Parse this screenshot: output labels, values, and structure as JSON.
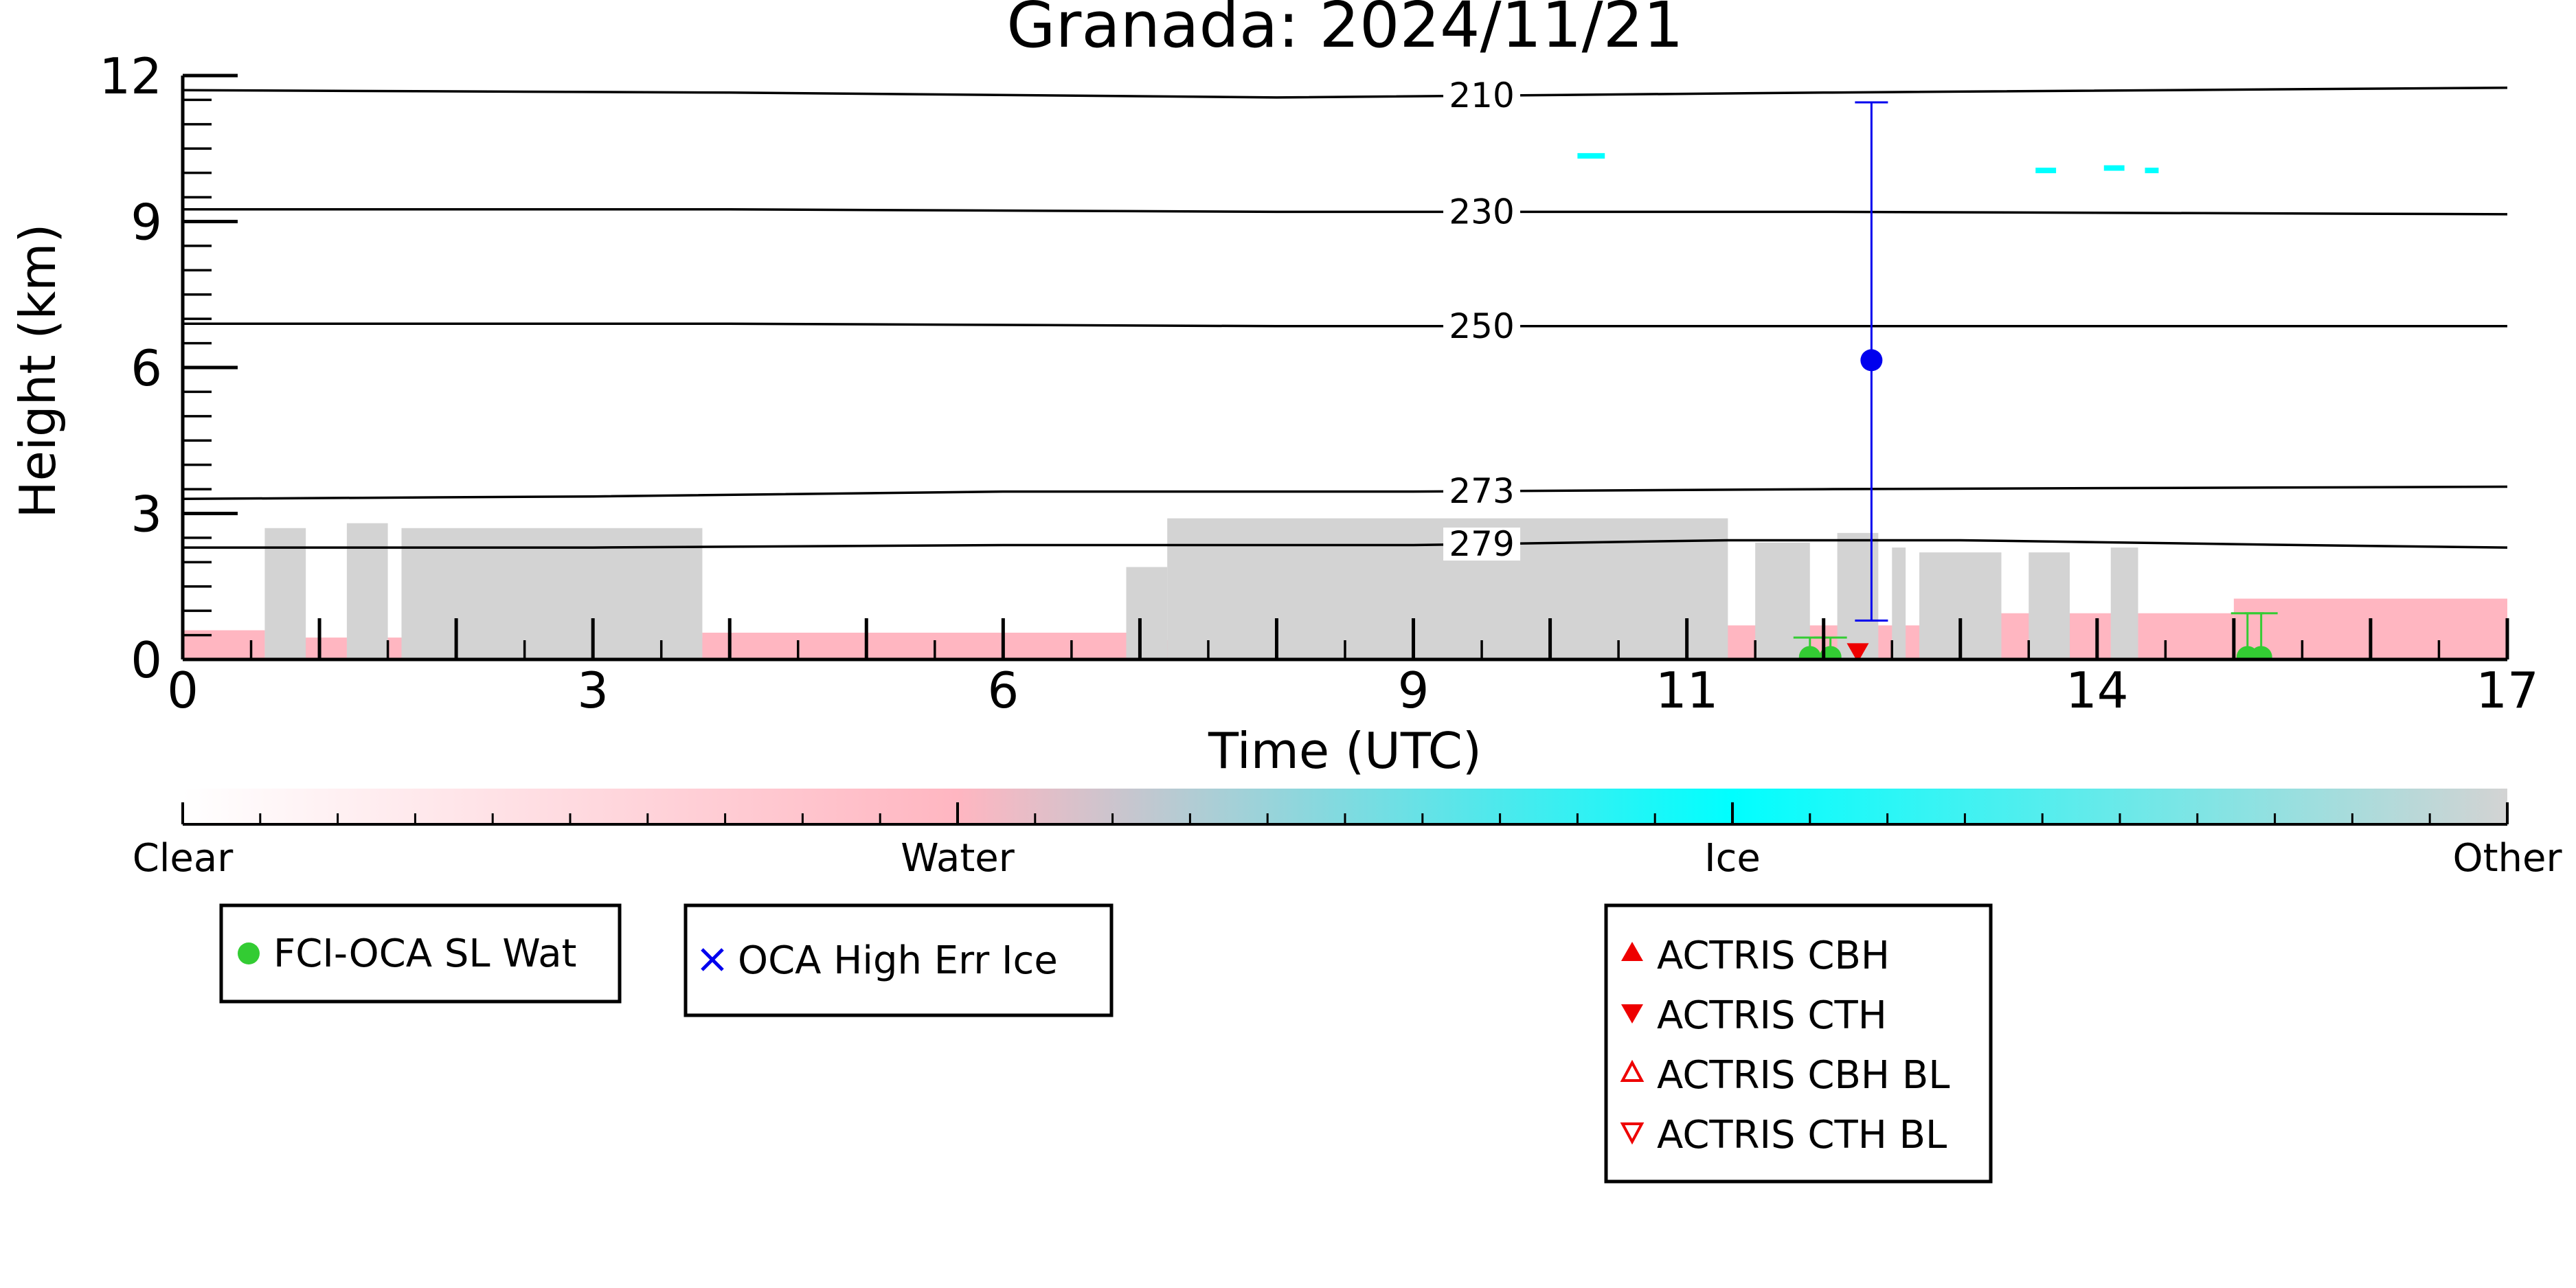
{
  "chart_data": {
    "type": "scatter",
    "title": "Granada: 2024/11/21",
    "xlabel": "Time (UTC)",
    "ylabel": "Height (km)",
    "xlim": [
      0,
      17
    ],
    "ylim": [
      0,
      12
    ],
    "x_ticks": [
      {
        "value": 0,
        "label": "0"
      },
      {
        "value": 3,
        "label": "3"
      },
      {
        "value": 6,
        "label": "6"
      },
      {
        "value": 9,
        "label": "9"
      },
      {
        "value": 11,
        "label": "11"
      },
      {
        "value": 14,
        "label": "14"
      },
      {
        "value": 17,
        "label": "17"
      }
    ],
    "y_ticks": [
      {
        "value": 0,
        "label": "0"
      },
      {
        "value": 3,
        "label": "3"
      },
      {
        "value": 6,
        "label": "6"
      },
      {
        "value": 9,
        "label": "9"
      },
      {
        "value": 12,
        "label": "12"
      }
    ],
    "isotherms": [
      {
        "label": "210",
        "label_x": 9.5,
        "points": [
          [
            0,
            11.7
          ],
          [
            4,
            11.65
          ],
          [
            8,
            11.55
          ],
          [
            12,
            11.65
          ],
          [
            17,
            11.75
          ]
        ]
      },
      {
        "label": "230",
        "label_x": 9.5,
        "points": [
          [
            0,
            9.25
          ],
          [
            4,
            9.25
          ],
          [
            8,
            9.2
          ],
          [
            12,
            9.2
          ],
          [
            17,
            9.15
          ]
        ]
      },
      {
        "label": "250",
        "label_x": 9.5,
        "points": [
          [
            0,
            6.9
          ],
          [
            4,
            6.9
          ],
          [
            8,
            6.85
          ],
          [
            12,
            6.85
          ],
          [
            17,
            6.85
          ]
        ]
      },
      {
        "label": "273",
        "label_x": 9.5,
        "points": [
          [
            0,
            3.3
          ],
          [
            3,
            3.35
          ],
          [
            6,
            3.45
          ],
          [
            9,
            3.45
          ],
          [
            12,
            3.5
          ],
          [
            17,
            3.55
          ]
        ]
      },
      {
        "label": "279",
        "label_x": 9.5,
        "points": [
          [
            0,
            2.3
          ],
          [
            3,
            2.3
          ],
          [
            6,
            2.35
          ],
          [
            9,
            2.35
          ],
          [
            11.3,
            2.45
          ],
          [
            13,
            2.45
          ],
          [
            15.5,
            2.35
          ],
          [
            17,
            2.3
          ]
        ]
      }
    ],
    "curtain": {
      "water_layers": [
        {
          "x0": 0.0,
          "x1": 0.6,
          "top": 0.6
        },
        {
          "x0": 0.6,
          "x1": 3.8,
          "top": 0.45
        },
        {
          "x0": 3.8,
          "x1": 6.9,
          "top": 0.55
        },
        {
          "x0": 6.9,
          "x1": 11.0,
          "top": 0.4
        },
        {
          "x0": 11.0,
          "x1": 13.0,
          "top": 0.7
        },
        {
          "x0": 13.0,
          "x1": 15.0,
          "top": 0.95
        },
        {
          "x0": 15.0,
          "x1": 17.0,
          "top": 1.25
        }
      ],
      "other_blocks": [
        {
          "x0": 0.6,
          "x1": 0.9,
          "top": 2.7
        },
        {
          "x0": 1.2,
          "x1": 1.5,
          "top": 2.8
        },
        {
          "x0": 1.6,
          "x1": 3.8,
          "top": 2.7
        },
        {
          "x0": 6.9,
          "x1": 7.2,
          "top": 1.9
        },
        {
          "x0": 7.2,
          "x1": 11.3,
          "top": 2.9
        },
        {
          "x0": 11.5,
          "x1": 11.9,
          "top": 2.4
        },
        {
          "x0": 12.1,
          "x1": 12.4,
          "top": 2.6
        },
        {
          "x0": 12.5,
          "x1": 12.6,
          "top": 2.3
        },
        {
          "x0": 12.7,
          "x1": 13.3,
          "top": 2.2
        },
        {
          "x0": 13.5,
          "x1": 13.8,
          "top": 2.2
        },
        {
          "x0": 14.1,
          "x1": 14.3,
          "top": 2.3
        }
      ],
      "ice_specks": [
        {
          "x0": 10.2,
          "x1": 10.4,
          "y": 10.35
        },
        {
          "x0": 13.55,
          "x1": 13.7,
          "y": 10.05
        },
        {
          "x0": 14.05,
          "x1": 14.2,
          "y": 10.1
        },
        {
          "x0": 14.35,
          "x1": 14.45,
          "y": 10.05
        }
      ]
    },
    "series": [
      {
        "name": "FCI-OCA SL Wat",
        "marker": "circle",
        "color": "#33cc33",
        "points": [
          {
            "x": 11.9,
            "y": 0.05,
            "y_low": 0.0,
            "y_high": 0.45
          },
          {
            "x": 12.05,
            "y": 0.05,
            "y_low": 0.0,
            "y_high": 0.45
          },
          {
            "x": 15.1,
            "y": 0.05,
            "y_low": 0.0,
            "y_high": 0.95
          },
          {
            "x": 15.2,
            "y": 0.05,
            "y_low": 0.0,
            "y_high": 0.95
          }
        ]
      },
      {
        "name": "OCA High Err Ice",
        "marker": "x",
        "color": "#0000ee",
        "points": []
      },
      {
        "name": "OCA Ice",
        "marker": "circle",
        "color": "#0000ee",
        "show_in_legend": false,
        "points": [
          {
            "x": 12.35,
            "y": 6.15,
            "y_low": 0.8,
            "y_high": 11.45
          }
        ]
      },
      {
        "name": "ACTRIS CBH",
        "marker": "triangle-up",
        "color": "#ee0000",
        "points": []
      },
      {
        "name": "ACTRIS CTH",
        "marker": "triangle-down",
        "color": "#ee0000",
        "points": [
          {
            "x": 12.25,
            "y": 0.08
          }
        ]
      },
      {
        "name": "ACTRIS CBH BL",
        "marker": "triangle-up-open",
        "color": "#ee0000",
        "points": []
      },
      {
        "name": "ACTRIS CTH BL",
        "marker": "triangle-down-open",
        "color": "#ee0000",
        "points": []
      }
    ],
    "colorbar": {
      "labels": [
        "Clear",
        "Water",
        "Ice",
        "Other"
      ],
      "stops": [
        "#ffffff",
        "#ffb6c1",
        "#00ffff",
        "#d3d3d3"
      ]
    },
    "legends": [
      {
        "entries": [
          "FCI-OCA SL Wat"
        ]
      },
      {
        "entries": [
          "OCA High Err Ice"
        ]
      },
      {
        "entries": [
          "ACTRIS CBH",
          "ACTRIS CTH",
          "ACTRIS CBH BL",
          "ACTRIS CTH BL"
        ]
      }
    ],
    "colors": {
      "water": "#ffb6c1",
      "ice": "#00ffff",
      "other": "#d3d3d3",
      "isotherm": "#000000"
    }
  }
}
